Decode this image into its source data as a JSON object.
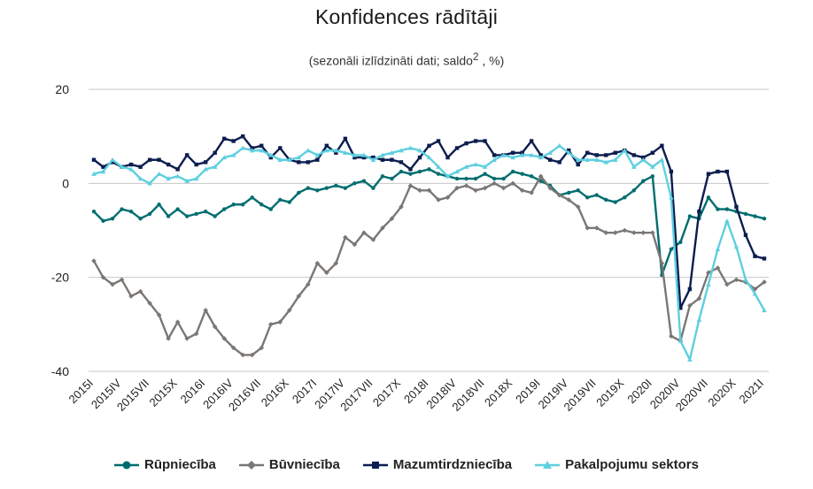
{
  "chart_data": {
    "type": "line",
    "title": "Konfidences rādītāji",
    "subtitle_main": "(sezonāli izlīdzināti dati; saldo",
    "subtitle_sup": "2",
    "subtitle_tail": " , %)",
    "ylim": [
      -40,
      20
    ],
    "yticks": [
      20,
      0,
      -20,
      -40
    ],
    "grid": true,
    "legend_position": "bottom",
    "x_tick_labels": [
      "2015I",
      "2015IV",
      "2015VII",
      "2015X",
      "2016I",
      "2016IV",
      "2016VII",
      "2016X",
      "2017I",
      "2017IV",
      "2017VII",
      "2017X",
      "2018I",
      "2018IV",
      "2018VII",
      "2018X",
      "2019I",
      "2019IV",
      "2019VII",
      "2019X",
      "2020I",
      "2020IV",
      "2020VII",
      "2020X",
      "2021I"
    ],
    "n_points": 73,
    "series": [
      {
        "name": "Rūpniecība",
        "color": "#006d6f",
        "marker": "circle",
        "values": [
          -6,
          -8,
          -7.5,
          -5.5,
          -6,
          -7.5,
          -6.5,
          -4.5,
          -7,
          -5.5,
          -7,
          -6.5,
          -6,
          -7,
          -5.5,
          -4.5,
          -4.5,
          -3,
          -4.5,
          -5.5,
          -3.5,
          -4,
          -2,
          -1,
          -1.5,
          -1,
          -0.5,
          -1,
          0,
          0.5,
          -1,
          1.5,
          1,
          2.5,
          2,
          2.5,
          3,
          2,
          1.5,
          1,
          1,
          1,
          2,
          1,
          1,
          2.5,
          2,
          1.5,
          0.5,
          -0.5,
          -2.5,
          -2,
          -1.5,
          -3,
          -2.5,
          -3.5,
          -4,
          -3,
          -1.5,
          0.5,
          1.5,
          -19.5,
          -14,
          -12.5,
          -7,
          -7.5,
          -3,
          -5.5,
          -5.5,
          -6,
          -6.5,
          -7,
          -7.5
        ]
      },
      {
        "name": "Būvniecība",
        "color": "#7b7774",
        "marker": "diamond",
        "values": [
          -16.5,
          -20,
          -21.5,
          -20.5,
          -24,
          -23,
          -25.5,
          -28,
          -33,
          -29.5,
          -33,
          -32,
          -27,
          -30.5,
          -33,
          -35,
          -36.5,
          -36.5,
          -35,
          -30,
          -29.5,
          -27,
          -24,
          -21.5,
          -17,
          -19,
          -17,
          -11.5,
          -13,
          -10.5,
          -12,
          -9.5,
          -7.5,
          -5,
          -0.5,
          -1.5,
          -1.5,
          -3.5,
          -3,
          -1,
          -0.5,
          -1.5,
          -1,
          0,
          -1,
          0,
          -1.5,
          -2,
          1.5,
          -1,
          -2.5,
          -3.5,
          -5,
          -9.5,
          -9.5,
          -10.5,
          -10.5,
          -10,
          -10.5,
          -10.5,
          -10.5,
          -17,
          -32.5,
          -33.5,
          -26,
          -24.5,
          -19,
          -18,
          -21.5,
          -20.5,
          -21,
          -22.5,
          -21
        ]
      },
      {
        "name": "Mazumtirdzniecība",
        "color": "#0c1d4f",
        "marker": "square",
        "values": [
          5,
          3.5,
          4.5,
          3.5,
          4,
          3.5,
          5,
          5,
          4,
          3,
          6,
          4,
          4.5,
          6.5,
          9.5,
          9,
          10,
          7.5,
          8,
          5.5,
          7.5,
          5,
          4.5,
          4.5,
          5,
          8,
          6.5,
          9.5,
          5.5,
          5.5,
          5.5,
          5,
          5,
          4.5,
          3,
          5.5,
          8,
          9,
          5.5,
          7.5,
          8.5,
          9,
          9,
          6,
          6,
          6.5,
          6.5,
          9,
          6,
          5,
          4.5,
          7,
          4,
          6.5,
          6,
          6,
          6.5,
          7,
          6,
          5.5,
          6.5,
          8,
          2.5,
          -26.5,
          -22.5,
          -6,
          2,
          2.5,
          2.5,
          -5,
          -11,
          -15.5,
          -16
        ]
      },
      {
        "name": "Pakalpojumu sektors",
        "color": "#5ecfdf",
        "marker": "triangle",
        "values": [
          2,
          2.5,
          5,
          3.5,
          3,
          1,
          0,
          2,
          1,
          1.5,
          0.5,
          1,
          3,
          3.5,
          5.5,
          6,
          7.5,
          7,
          7,
          6,
          5,
          5,
          5.5,
          7,
          6,
          7,
          7,
          6.5,
          6,
          6,
          5,
          6,
          6.5,
          7,
          7.5,
          7,
          5.5,
          3.5,
          1.5,
          2.5,
          3.5,
          4,
          3.5,
          5,
          6,
          5.5,
          6,
          6,
          5.5,
          6.5,
          8,
          6.5,
          5,
          5,
          5,
          4.5,
          5,
          7,
          3.5,
          5,
          3.5,
          5,
          -3,
          -33.5,
          -37.5,
          -29,
          -21.5,
          -14,
          -8,
          -13.5,
          -20.5,
          -23.5,
          -27
        ]
      }
    ]
  }
}
